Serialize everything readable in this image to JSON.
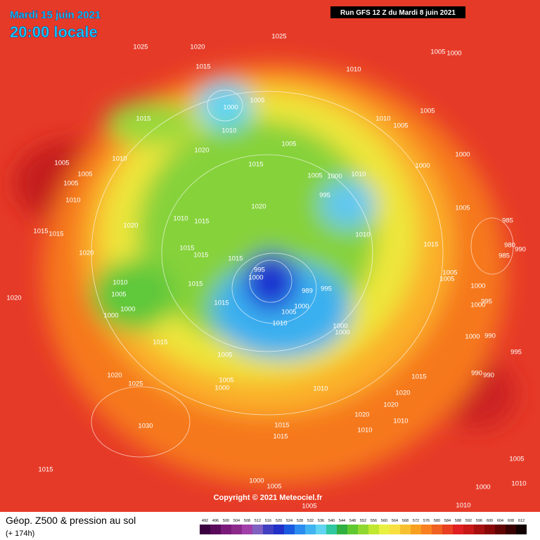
{
  "header": {
    "date": "Mardi 15 juin 2021",
    "time": "20:00 locale"
  },
  "run_info": "Run GFS 12 Z du Mardi 8 juin 2021",
  "copyright": "Copyright © 2021 Meteociel.fr",
  "legend": {
    "title": "Géop. Z500 & pression au sol",
    "lead_time": "(+ 174h)",
    "levels": [
      492,
      496,
      500,
      504,
      508,
      512,
      516,
      520,
      524,
      528,
      532,
      536,
      540,
      544,
      548,
      552,
      556,
      560,
      564,
      568,
      572,
      576,
      580,
      584,
      588,
      592,
      596,
      600,
      604,
      608,
      612
    ],
    "colors": [
      "#3a0040",
      "#5a0a5a",
      "#7a1a7a",
      "#8c2a8c",
      "#a040a8",
      "#8060c0",
      "#4040c0",
      "#2030c8",
      "#1a5ae0",
      "#2a8cf0",
      "#40b4f0",
      "#60d4f0",
      "#30c8a0",
      "#30b040",
      "#60c830",
      "#90d830",
      "#c0e830",
      "#e8f040",
      "#f8e040",
      "#f8c030",
      "#f8a020",
      "#f88020",
      "#f06020",
      "#e84020",
      "#e02020",
      "#c81818",
      "#a81010",
      "#880808",
      "#600404",
      "#380000",
      "#100000"
    ]
  },
  "isobar_labels": [
    1025,
    1025,
    1020,
    1015,
    1010,
    1005,
    1000,
    1005,
    1000,
    1015,
    1010,
    1005,
    1010,
    1005,
    1005,
    1020,
    1010,
    1005,
    1005,
    1005,
    1010,
    1015,
    1005,
    1000,
    1010,
    1000,
    1000,
    995,
    1005,
    1020,
    1010,
    1015,
    1020,
    1015,
    1015,
    1010,
    1015,
    1015,
    1020,
    1015,
    1015,
    985,
    980,
    990,
    985,
    1005,
    995,
    1000,
    1005,
    1010,
    1015,
    989,
    995,
    1005,
    1000,
    995,
    1000,
    1020,
    1015,
    1000,
    1000,
    1005,
    1000,
    1010,
    1000,
    1000,
    1000,
    990,
    1015,
    995,
    1005,
    990,
    990,
    1020,
    1025,
    1005,
    1000,
    1010,
    1015,
    1020,
    1020,
    1020,
    1010,
    1030,
    1015,
    1010,
    1015,
    1015,
    1005,
    1000,
    1005,
    1010,
    1000,
    1005,
    1010
  ]
}
